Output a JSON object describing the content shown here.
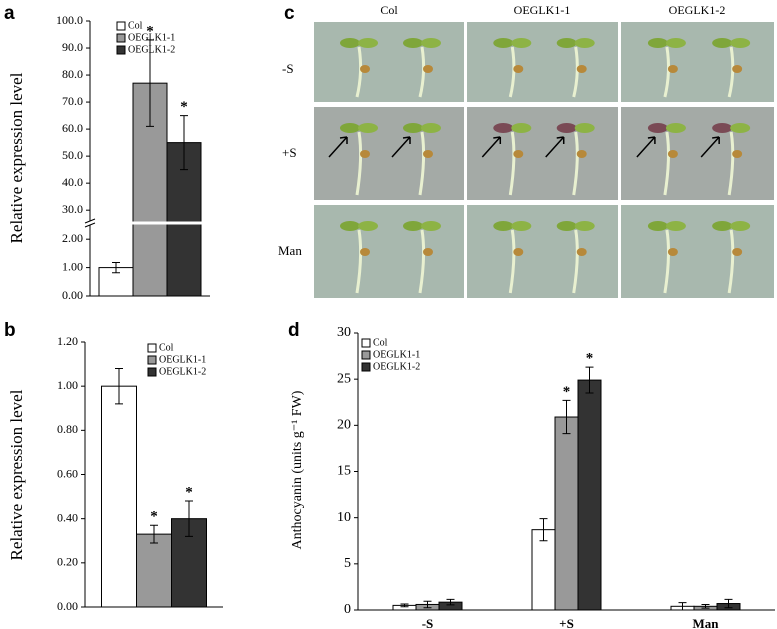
{
  "chart_data": [
    {
      "type": "bar",
      "panel_label": "a",
      "y_label": "Relative expression level",
      "series": [
        {
          "name": "Col",
          "color": "#ffffff",
          "values": [
            1.0
          ],
          "errors": [
            0.18
          ],
          "markers": [
            null
          ]
        },
        {
          "name": "OEGLK1-1",
          "color": "#999999",
          "values": [
            77
          ],
          "errors": [
            16
          ],
          "markers": [
            "*"
          ]
        },
        {
          "name": "OEGLK1-2",
          "color": "#333333",
          "values": [
            55
          ],
          "errors": [
            10
          ],
          "markers": [
            "*"
          ]
        }
      ],
      "ylim": [
        0,
        100
      ],
      "ybreak": [
        2.5,
        26
      ],
      "yticks": [
        {
          "value": 0,
          "label": "0.00"
        },
        {
          "value": 1,
          "label": "1.00"
        },
        {
          "value": 2,
          "label": "2.00"
        },
        {
          "value": 30,
          "label": "30.0"
        },
        {
          "value": 40,
          "label": "40.0"
        },
        {
          "value": 50,
          "label": "50.0"
        },
        {
          "value": 60,
          "label": "60.0"
        },
        {
          "value": 70,
          "label": "70.0"
        },
        {
          "value": 80,
          "label": "80.0"
        },
        {
          "value": 90,
          "label": "90.0"
        },
        {
          "value": 100,
          "label": "100.0"
        }
      ]
    },
    {
      "type": "bar",
      "panel_label": "b",
      "y_label": "Relative expression level",
      "series": [
        {
          "name": "Col",
          "color": "#ffffff",
          "values": [
            1.0
          ],
          "errors": [
            0.08
          ],
          "markers": [
            null
          ]
        },
        {
          "name": "OEGLK1-1",
          "color": "#999999",
          "values": [
            0.33
          ],
          "errors": [
            0.04
          ],
          "markers": [
            "*"
          ]
        },
        {
          "name": "OEGLK1-2",
          "color": "#333333",
          "values": [
            0.4
          ],
          "errors": [
            0.08
          ],
          "markers": [
            "*"
          ]
        }
      ],
      "ylim": [
        0,
        1.2
      ],
      "yticks": [
        {
          "value": 0,
          "label": "0.00"
        },
        {
          "value": 0.2,
          "label": "0.20"
        },
        {
          "value": 0.4,
          "label": "0.40"
        },
        {
          "value": 0.6,
          "label": "0.60"
        },
        {
          "value": 0.8,
          "label": "0.80"
        },
        {
          "value": 1.0,
          "label": "1.00"
        },
        {
          "value": 1.2,
          "label": "1.20"
        }
      ]
    },
    {
      "type": "bar",
      "panel_label": "d",
      "y_label": "Anthocyanin (units g⁻¹ FW)",
      "categories": [
        "-S",
        "+S",
        "Man"
      ],
      "series": [
        {
          "name": "Col",
          "color": "#ffffff",
          "values": [
            0.5,
            8.7,
            0.4
          ],
          "errors": [
            0.15,
            1.2,
            0.4
          ],
          "markers": [
            null,
            null,
            null
          ]
        },
        {
          "name": "OEGLK1-1",
          "color": "#999999",
          "values": [
            0.6,
            20.9,
            0.4
          ],
          "errors": [
            0.35,
            1.8,
            0.2
          ],
          "markers": [
            null,
            "*",
            null
          ]
        },
        {
          "name": "OEGLK1-2",
          "color": "#333333",
          "values": [
            0.85,
            24.9,
            0.7
          ],
          "errors": [
            0.3,
            1.4,
            0.45
          ],
          "markers": [
            null,
            "*",
            null
          ]
        }
      ],
      "ylim": [
        0,
        30
      ],
      "yticks": [
        0,
        5,
        10,
        15,
        20,
        25,
        30
      ]
    }
  ],
  "photo_panel": {
    "panel_label": "c",
    "columns": [
      "Col",
      "OEGLK1-1",
      "OEGLK1-2"
    ],
    "rows": [
      "-S",
      "+S",
      "Man"
    ]
  }
}
